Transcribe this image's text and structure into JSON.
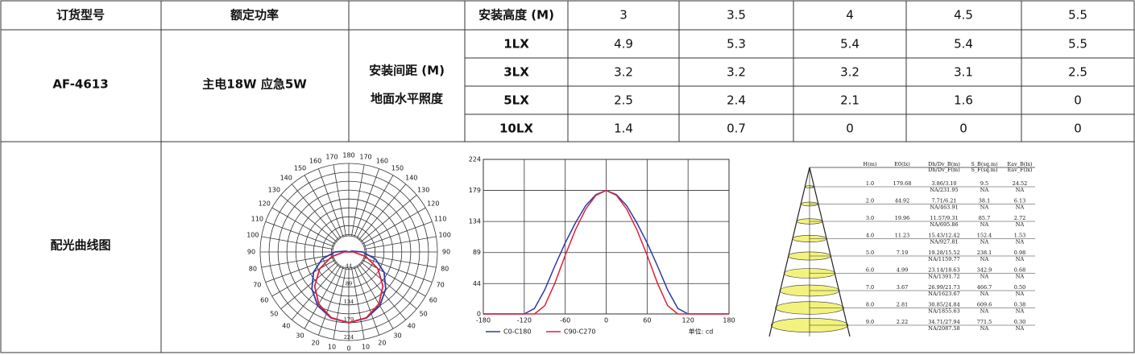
{
  "header": {
    "model_label": "订货型号",
    "power_label": "额定功率",
    "height_label": "安装高度 (M)",
    "heights": [
      3,
      3.5,
      4,
      4.5,
      5.5
    ]
  },
  "product": {
    "model": "AF-4613",
    "power": "主电18W 应急5W",
    "spacing_label": [
      "安装间距 (M)",
      "地面水平照度"
    ],
    "rows": [
      {
        "lux": "1LX",
        "values": [
          4.9,
          5.3,
          5.4,
          5.4,
          5.5
        ]
      },
      {
        "lux": "3LX",
        "values": [
          3.2,
          3.2,
          3.2,
          3.1,
          2.5
        ]
      },
      {
        "lux": "5LX",
        "values": [
          2.5,
          2.4,
          2.1,
          1.6,
          0
        ]
      },
      {
        "lux": "10LX",
        "values": [
          1.4,
          0.7,
          0,
          0,
          0
        ]
      }
    ]
  },
  "curves": {
    "label": "配光曲线图",
    "polar": {
      "angles": [
        0,
        10,
        20,
        30,
        40,
        50,
        60,
        70,
        80,
        90,
        100,
        110,
        120,
        130,
        140,
        150,
        160,
        170,
        180
      ],
      "rticks": [
        44,
        89,
        134,
        179,
        224
      ],
      "rlim": [
        0,
        224
      ]
    },
    "light_curve": {
      "type": "line",
      "x": [
        -180,
        -165,
        -150,
        -135,
        -120,
        -105,
        -90,
        -75,
        -60,
        -45,
        -30,
        -15,
        0,
        15,
        30,
        45,
        60,
        75,
        90,
        105,
        120,
        135,
        150,
        165,
        180
      ],
      "xlim": [
        -180,
        180
      ],
      "xticks": [
        -180,
        -120,
        -60,
        0,
        60,
        120,
        180
      ],
      "ylim": [
        0,
        224
      ],
      "yticks": [
        0,
        44,
        89,
        134,
        179,
        224
      ],
      "grid": true,
      "series": [
        {
          "name": "C0-C180",
          "color": "#2b3aa8",
          "values": [
            0,
            0,
            0,
            0,
            0,
            8,
            35,
            70,
            103,
            132,
            157,
            173,
            179,
            173,
            157,
            132,
            103,
            70,
            35,
            8,
            0,
            0,
            0,
            0,
            0
          ]
        },
        {
          "name": "C90-C270",
          "color": "#e0203a",
          "values": [
            0,
            0,
            0,
            0,
            0,
            0,
            12,
            45,
            85,
            122,
            152,
            172,
            179,
            172,
            152,
            122,
            85,
            45,
            12,
            0,
            0,
            0,
            0,
            0,
            0
          ]
        }
      ],
      "unit": "单位: cd"
    },
    "cone": {
      "columns": [
        [
          "H(m)"
        ],
        [
          "E0(lx)"
        ],
        [
          "Dh/Dv_B(m)",
          "Dh/Dv_F(m)"
        ],
        [
          "S_B(sq.m)",
          "S_F(sq.m)"
        ],
        [
          "Eav_B(lx)",
          "Eav_F(lx)"
        ]
      ],
      "rows": [
        [
          "1.0",
          "179.68",
          "3.86/3.10",
          "NA/231.95",
          "9.5",
          "NA",
          "24.52",
          "NA"
        ],
        [
          "2.0",
          "44.92",
          "7.71/6.21",
          "NA/463.91",
          "38.1",
          "NA",
          "6.13",
          "NA"
        ],
        [
          "3.0",
          "19.96",
          "11.57/9.31",
          "NA/695.86",
          "85.7",
          "NA",
          "2.72",
          "NA"
        ],
        [
          "4.0",
          "11.23",
          "15.43/12.42",
          "NA/927.81",
          "152.4",
          "NA",
          "1.53",
          "NA"
        ],
        [
          "5.0",
          "7.19",
          "19.28/15.52",
          "NA/1159.77",
          "238.1",
          "NA",
          "0.98",
          "NA"
        ],
        [
          "6.0",
          "4.99",
          "23.14/18.63",
          "NA/1391.72",
          "342.9",
          "NA",
          "0.68",
          "NA"
        ],
        [
          "7.0",
          "3.67",
          "26.99/21.73",
          "NA/1623.67",
          "466.7",
          "NA",
          "0.50",
          "NA"
        ],
        [
          "8.0",
          "2.81",
          "30.85/24.84",
          "NA/1855.63",
          "609.6",
          "NA",
          "0.38",
          "NA"
        ],
        [
          "9.0",
          "2.22",
          "34.71/27.94",
          "NA/2087.58",
          "771.5",
          "NA",
          "0.30",
          "NA"
        ]
      ]
    }
  }
}
